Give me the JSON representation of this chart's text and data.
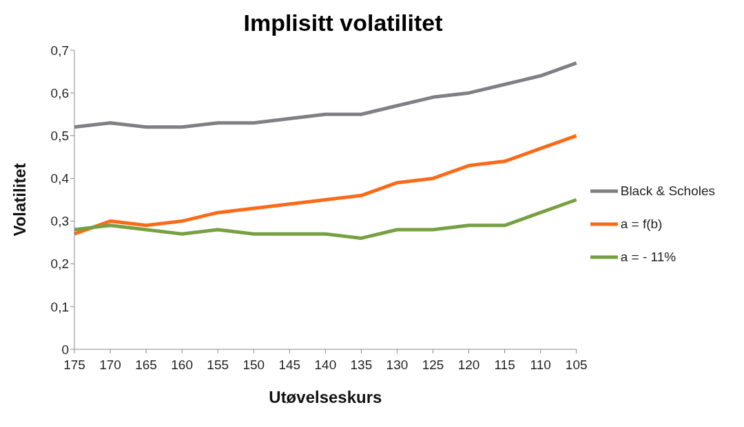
{
  "chart_data": {
    "type": "line",
    "title": "Implisitt volatilitet",
    "xlabel": "Utøvelseskurs",
    "ylabel": "Volatilitet",
    "categories": [
      "175",
      "170",
      "165",
      "160",
      "155",
      "150",
      "145",
      "140",
      "135",
      "130",
      "125",
      "120",
      "115",
      "110",
      "105"
    ],
    "series": [
      {
        "name": "Black & Scholes",
        "color": "#7f7f84",
        "values": [
          0.52,
          0.53,
          0.52,
          0.52,
          0.53,
          0.53,
          0.54,
          0.55,
          0.55,
          0.57,
          0.59,
          0.6,
          0.62,
          0.64,
          0.67
        ]
      },
      {
        "name": "a = f(b)",
        "color": "#fd6a17",
        "values": [
          0.27,
          0.3,
          0.29,
          0.3,
          0.32,
          0.33,
          0.34,
          0.35,
          0.36,
          0.39,
          0.4,
          0.43,
          0.44,
          0.47,
          0.5
        ]
      },
      {
        "name": "a = - 11%",
        "color": "#77a043",
        "values": [
          0.28,
          0.29,
          0.28,
          0.27,
          0.28,
          0.27,
          0.27,
          0.27,
          0.26,
          0.28,
          0.28,
          0.29,
          0.29,
          0.32,
          0.35
        ]
      }
    ],
    "ylim": [
      0,
      0.7
    ],
    "yticks": [
      0,
      {
        "value": 0.1,
        "label": "0,1"
      },
      {
        "value": 0.2,
        "label": "0,2"
      },
      {
        "value": 0.3,
        "label": "0,3"
      },
      {
        "value": 0.4,
        "label": "0,4"
      },
      {
        "value": 0.5,
        "label": "0,5"
      },
      {
        "value": 0.6,
        "label": "0,6"
      },
      {
        "value": 0.7,
        "label": "0,7"
      }
    ],
    "grid": false,
    "legend": "right",
    "marker": "none",
    "line_style": "solid"
  }
}
